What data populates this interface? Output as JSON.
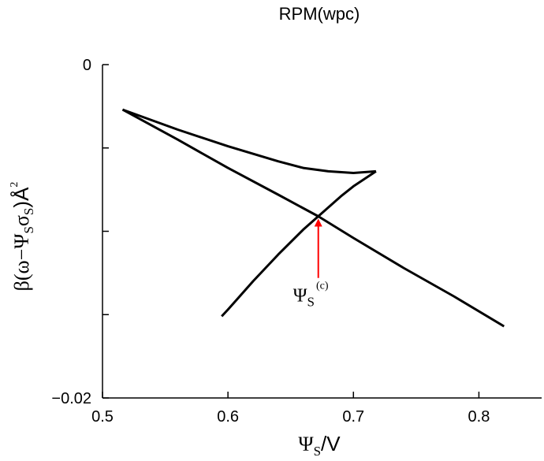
{
  "chart_data": {
    "type": "line",
    "title": "RPM(wpc)",
    "xlabel": {
      "main": "Ψ",
      "sub": "S",
      "tail": "/V"
    },
    "ylabel": {
      "pre": "β(ω−Ψ",
      "sub1": "S",
      "mid": "σ",
      "sub2": "S",
      "post": ")Å",
      "sup": "2"
    },
    "xlim": [
      0.5,
      0.85
    ],
    "ylim": [
      -0.02,
      0
    ],
    "x_ticks": [
      0.5,
      0.6,
      0.7,
      0.8
    ],
    "x_tick_labels": [
      "0.5",
      "0.6",
      "0.7",
      "0.8"
    ],
    "y_ticks": [
      -0.02,
      0
    ],
    "y_tick_labels": [
      "−0.02",
      "0"
    ],
    "grid": false,
    "series": [
      {
        "x": [
          0.516,
          0.56,
          0.6,
          0.64,
          0.672,
          0.7,
          0.74,
          0.78,
          0.82
        ],
        "y": [
          -0.0027,
          -0.0045,
          -0.0062,
          -0.0078,
          -0.0091,
          -0.0104,
          -0.0122,
          -0.0139,
          -0.0157
        ]
      },
      {
        "x": [
          0.516,
          0.56,
          0.6,
          0.64,
          0.66,
          0.68,
          0.7,
          0.718
        ],
        "y": [
          -0.0027,
          -0.0039,
          -0.0049,
          -0.0058,
          -0.0062,
          -0.0064,
          -0.0065,
          -0.0064
        ]
      },
      {
        "x": [
          0.718,
          0.7,
          0.69,
          0.672,
          0.66,
          0.64,
          0.62,
          0.6,
          0.595
        ],
        "y": [
          -0.0064,
          -0.0073,
          -0.0079,
          -0.0091,
          -0.0099,
          -0.0114,
          -0.013,
          -0.0147,
          -0.0151
        ]
      }
    ],
    "annotation": {
      "text_main": "Ψ",
      "text_sub": "S",
      "text_sup": "(c)",
      "arrow_color": "#ff0000",
      "arrow_tip": {
        "x": 0.672,
        "y": -0.0091
      },
      "arrow_tail": {
        "x": 0.672,
        "y": -0.0128
      },
      "text_anchor": {
        "x": 0.666,
        "y": -0.0142
      }
    }
  }
}
